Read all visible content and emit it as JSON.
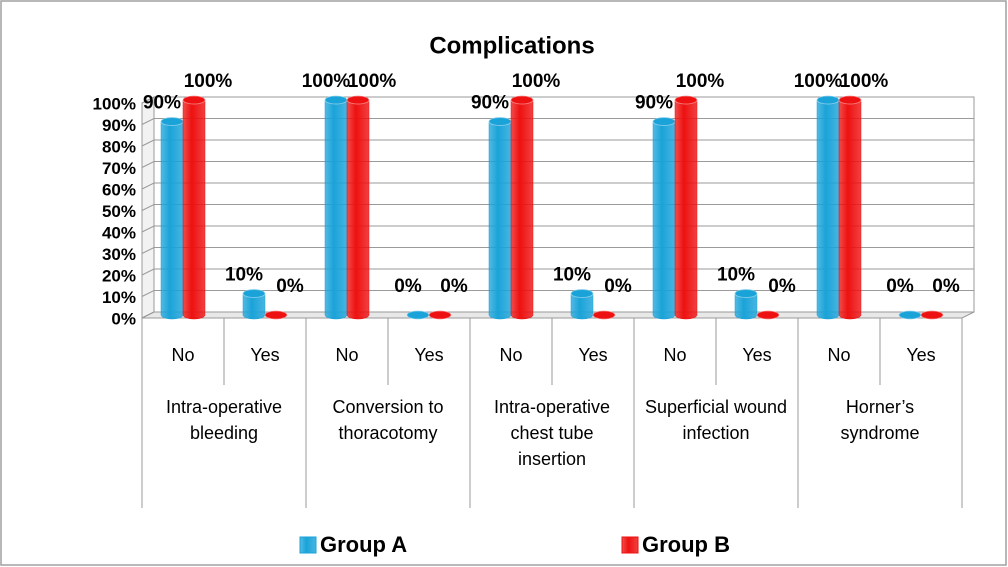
{
  "chart_data": {
    "type": "bar3d",
    "title": "Complications",
    "categories": [
      "No",
      "Yes",
      "No",
      "Yes",
      "No",
      "Yes",
      "No",
      "Yes",
      "No",
      "Yes"
    ],
    "category_groups": [
      "Intra-operative bleeding",
      "Conversion to thoracotomy",
      "Intra-operative chest tube insertion",
      "Superficial wound infection",
      "Horner’s syndrome"
    ],
    "series": [
      {
        "name": "Group A",
        "color": "#1aa3d9",
        "values": [
          90,
          10,
          100,
          0,
          90,
          10,
          90,
          10,
          100,
          0
        ],
        "value_labels": [
          "90%",
          "10%",
          "100%",
          "0%",
          "90%",
          "10%",
          "90%",
          "10%",
          "100%",
          "0%"
        ]
      },
      {
        "name": "Group B",
        "color": "#ee1111",
        "values": [
          100,
          0,
          100,
          0,
          100,
          0,
          100,
          0,
          100,
          0
        ],
        "value_labels": [
          "100%",
          "0%",
          "100%",
          "0%",
          "100%",
          "0%",
          "100%",
          "0%",
          "100%",
          "0%"
        ]
      }
    ],
    "ylim": [
      0,
      100
    ],
    "yticks": [
      {
        "value": 0,
        "label": "0%"
      },
      {
        "value": 10,
        "label": "10%"
      },
      {
        "value": 20,
        "label": "20%"
      },
      {
        "value": 30,
        "label": "30%"
      },
      {
        "value": 40,
        "label": "40%"
      },
      {
        "value": 50,
        "label": "50%"
      },
      {
        "value": 60,
        "label": "60%"
      },
      {
        "value": 70,
        "label": "70%"
      },
      {
        "value": 80,
        "label": "80%"
      },
      {
        "value": 90,
        "label": "90%"
      },
      {
        "value": 100,
        "label": "100%"
      }
    ],
    "grid": true,
    "legend": "bottom"
  }
}
